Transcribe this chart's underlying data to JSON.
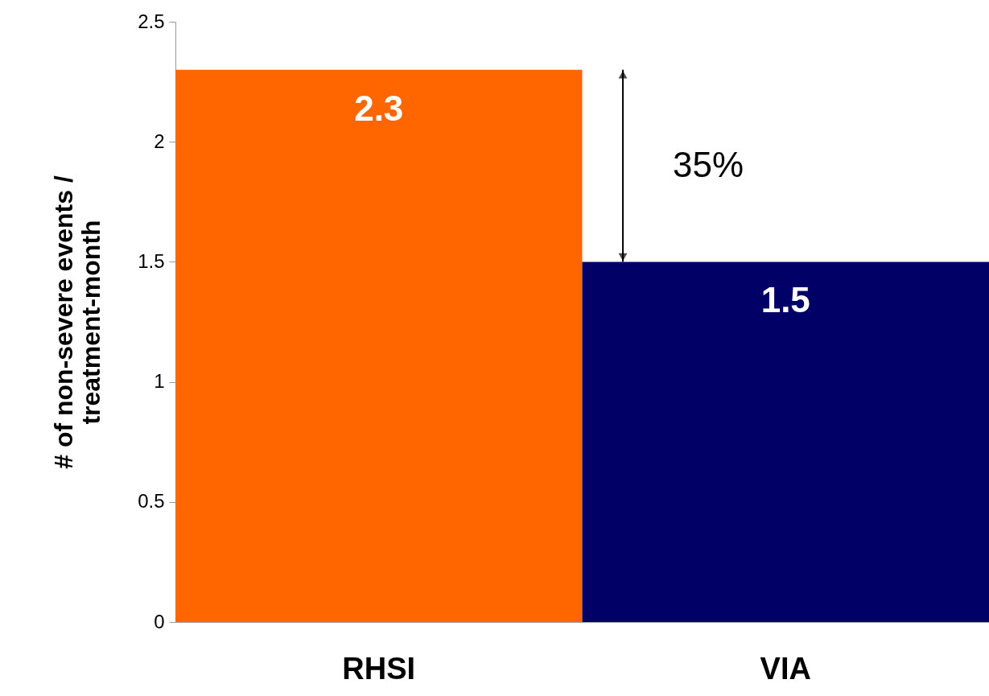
{
  "chart_data": {
    "type": "bar",
    "ylabel": "# of non-severe events / treatment-month",
    "categories": [
      "RHSI",
      "VIA"
    ],
    "values": [
      2.3,
      1.5
    ],
    "colors": [
      "#ff6600",
      "#000066"
    ],
    "ylim": [
      0,
      2.5
    ],
    "yticks": [
      0,
      0.5,
      1,
      1.5,
      2,
      2.5
    ],
    "data_labels": true,
    "grid": false,
    "annotations": [
      "35%"
    ]
  }
}
